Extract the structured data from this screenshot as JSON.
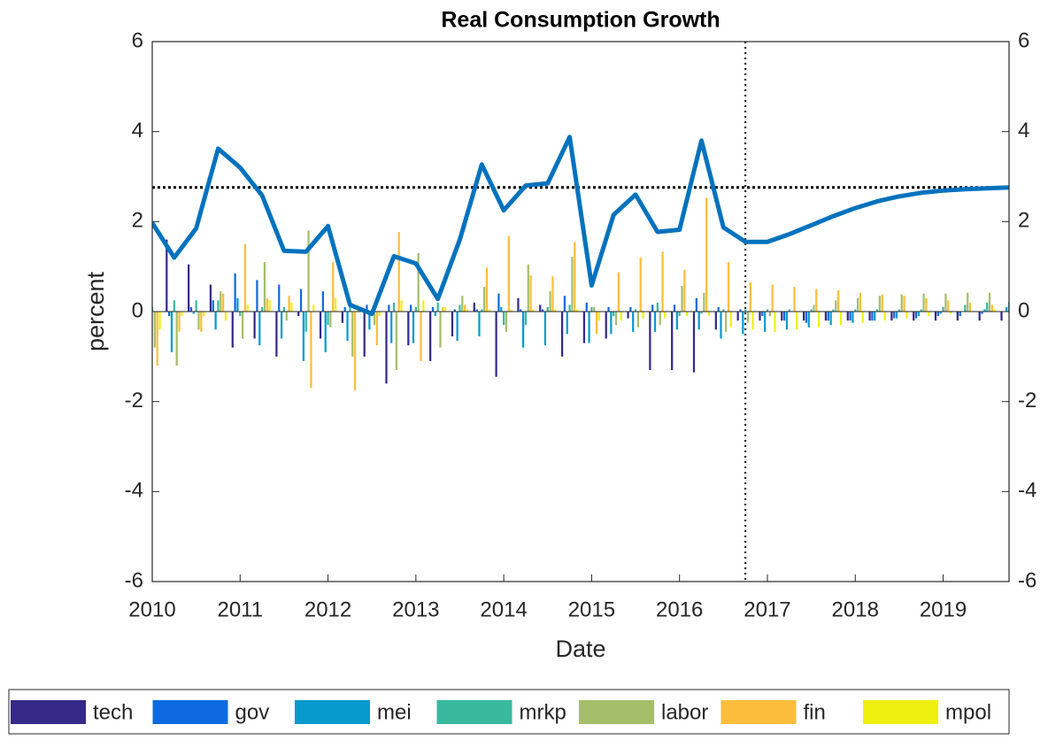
{
  "chart_data": {
    "type": "bar-line",
    "title": "Real Consumption Growth",
    "xlabel": "Date",
    "ylabel": "percent",
    "x": [
      2010,
      2010.25,
      2010.5,
      2010.75,
      2011,
      2011.25,
      2011.5,
      2011.75,
      2012,
      2012.25,
      2012.5,
      2012.75,
      2013,
      2013.25,
      2013.5,
      2013.75,
      2014,
      2014.25,
      2014.5,
      2014.75,
      2015,
      2015.25,
      2015.5,
      2015.75,
      2016,
      2016.25,
      2016.5,
      2016.75,
      2017,
      2017.25,
      2017.5,
      2017.75,
      2018,
      2018.25,
      2018.5,
      2018.75,
      2019,
      2019.25,
      2019.5,
      2019.75
    ],
    "xlim": [
      2010,
      2019.75
    ],
    "xticks": [
      2010,
      2011,
      2012,
      2013,
      2014,
      2015,
      2016,
      2017,
      2018,
      2019
    ],
    "ylim": [
      -6,
      6
    ],
    "yticks": [
      -6,
      -4,
      -2,
      0,
      2,
      4,
      6
    ],
    "y2lim": [
      -6,
      6
    ],
    "y2ticks": [
      -6,
      -4,
      -2,
      0,
      2,
      4,
      6
    ],
    "reference_y": 2.76,
    "reference_x": 2016.75,
    "line": {
      "color": "#0072bd",
      "values": [
        1.97,
        1.2,
        1.85,
        3.62,
        3.2,
        2.58,
        1.35,
        1.33,
        1.9,
        0.15,
        -0.05,
        1.23,
        1.07,
        0.28,
        1.6,
        3.27,
        2.25,
        2.8,
        2.85,
        3.88,
        0.58,
        2.15,
        2.6,
        1.77,
        1.82,
        3.8,
        1.87,
        1.55,
        1.55,
        1.72,
        1.92,
        2.12,
        2.3,
        2.45,
        2.56,
        2.64,
        2.69,
        2.72,
        2.74,
        2.76
      ]
    },
    "series": [
      {
        "name": "tech",
        "color": "#352a87",
        "values": [
          0.05,
          1.6,
          1.05,
          0.6,
          -0.8,
          -0.6,
          -1.0,
          -0.1,
          -0.6,
          -0.25,
          -1.0,
          -1.6,
          -0.75,
          -1.1,
          -0.55,
          0.2,
          -1.45,
          0.3,
          0.15,
          -1.0,
          -0.7,
          -0.6,
          -0.15,
          -1.3,
          -1.3,
          -1.35,
          -0.4,
          -0.2,
          -0.2,
          -0.2,
          -0.2,
          -0.2,
          -0.2,
          -0.2,
          -0.2,
          -0.2,
          -0.2,
          -0.2,
          -0.2,
          -0.2
        ]
      },
      {
        "name": "gov",
        "color": "#0d6ae0",
        "values": [
          0.05,
          -0.1,
          0.1,
          0.25,
          0.85,
          0.7,
          0.6,
          0.5,
          0.45,
          0.1,
          0.15,
          0.15,
          0.15,
          0.1,
          0.05,
          0.05,
          0.4,
          0.05,
          0.05,
          0.35,
          0.2,
          0.1,
          0.1,
          0.15,
          0.15,
          0.3,
          0.1,
          0.05,
          -0.1,
          -0.2,
          -0.25,
          -0.2,
          -0.2,
          -0.2,
          -0.15,
          -0.15,
          -0.1,
          -0.1,
          -0.05,
          0.0
        ]
      },
      {
        "name": "mei",
        "color": "#069acd",
        "values": [
          0.05,
          -0.9,
          -0.05,
          -0.4,
          0.3,
          -0.75,
          -0.6,
          -1.1,
          -0.9,
          -0.65,
          -0.4,
          -0.7,
          -0.7,
          -0.1,
          -0.65,
          -0.55,
          0.1,
          -0.8,
          -0.75,
          -0.5,
          -0.7,
          -0.5,
          -0.45,
          -0.45,
          -0.4,
          -0.4,
          -0.6,
          -0.5,
          -0.45,
          -0.4,
          -0.35,
          -0.3,
          -0.25,
          -0.2,
          -0.15,
          -0.1,
          -0.05,
          0.0,
          0.05,
          0.1
        ]
      },
      {
        "name": "mrkp",
        "color": "#38b99e",
        "values": [
          0.1,
          0.25,
          0.25,
          0.25,
          -0.1,
          0.1,
          0.1,
          -0.45,
          -0.3,
          0.2,
          -0.1,
          0.2,
          0.1,
          0.2,
          0.15,
          0.05,
          -0.3,
          -0.3,
          0.1,
          0.15,
          0.1,
          -0.1,
          0.05,
          0.2,
          -0.1,
          -0.05,
          0.05,
          0.05,
          0.05,
          0.05,
          0.05,
          0.05,
          0.05,
          0.05,
          0.05,
          0.05,
          0.1,
          0.15,
          0.2,
          0.22
        ]
      },
      {
        "name": "labor",
        "color": "#a5be6a",
        "values": [
          -0.8,
          -1.2,
          -0.4,
          0.45,
          -0.6,
          1.1,
          -0.2,
          1.8,
          -0.35,
          -1.0,
          -0.3,
          -1.3,
          1.3,
          -0.8,
          0.35,
          0.55,
          -0.45,
          1.05,
          0.45,
          1.22,
          0.1,
          -0.3,
          -0.35,
          -0.3,
          0.57,
          0.42,
          -0.45,
          -0.25,
          -0.1,
          0.0,
          0.15,
          0.25,
          0.3,
          0.35,
          0.38,
          0.4,
          0.4,
          0.42,
          0.42,
          0.4
        ]
      },
      {
        "name": "fin",
        "color": "#fdbd3c",
        "values": [
          -1.2,
          -0.45,
          -0.45,
          0.4,
          1.5,
          0.3,
          0.35,
          -1.7,
          1.1,
          -1.75,
          -0.75,
          1.77,
          -1.1,
          0.1,
          0.15,
          0.98,
          1.68,
          0.8,
          0.78,
          1.55,
          -0.5,
          0.87,
          1.2,
          1.33,
          0.93,
          2.53,
          1.1,
          0.65,
          0.6,
          0.55,
          0.5,
          0.47,
          0.42,
          0.38,
          0.35,
          0.3,
          0.25,
          0.2,
          0.15,
          0.1
        ]
      },
      {
        "name": "mpol",
        "color": "#f0f00f",
        "values": [
          -0.4,
          -0.1,
          -0.1,
          -0.2,
          0.15,
          0.25,
          0.2,
          0.15,
          0.3,
          0.15,
          -0.1,
          0.25,
          0.25,
          0.1,
          0.05,
          0.05,
          0.05,
          0.05,
          0.05,
          0.05,
          -0.2,
          -0.2,
          -0.15,
          -0.15,
          -0.1,
          -0.1,
          -0.35,
          -0.4,
          -0.45,
          -0.4,
          -0.35,
          -0.3,
          -0.25,
          -0.2,
          -0.15,
          -0.1,
          -0.05,
          0.0,
          0.05,
          0.05
        ]
      }
    ]
  }
}
